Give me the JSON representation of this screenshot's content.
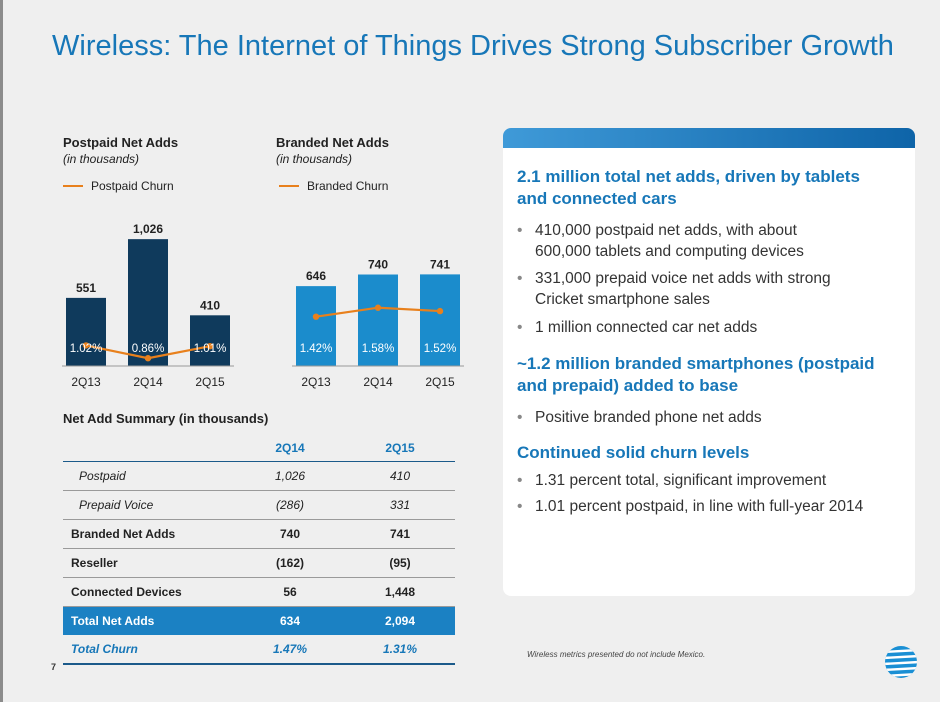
{
  "slide": {
    "title": "Wireless: The Internet of Things Drives Strong Subscriber Growth",
    "page_number": "7",
    "footnote": "Wireless metrics presented do not  include Mexico.",
    "logo_icon": "att-globe-icon"
  },
  "colors": {
    "title": "#1777b8",
    "postpaid_bar": "#0f3a5c",
    "branded_bar": "#1b8ccc",
    "churn_line": "#e8801c",
    "panel_heading": "#1777b8"
  },
  "chart_data": [
    {
      "type": "bar",
      "title": "Postpaid Net Adds",
      "subtitle": "(in thousands)",
      "categories": [
        "2Q13",
        "2Q14",
        "2Q15"
      ],
      "values": [
        551,
        1026,
        410
      ],
      "value_labels": [
        "551",
        "1,026",
        "410"
      ],
      "line_series": {
        "name": "Postpaid Churn",
        "values": [
          1.02,
          0.86,
          1.01
        ],
        "labels": [
          "1.02%",
          "0.86%",
          "1.01%"
        ]
      },
      "ylim": [
        0,
        1100
      ]
    },
    {
      "type": "bar",
      "title": "Branded Net Adds",
      "subtitle": "(in thousands)",
      "categories": [
        "2Q13",
        "2Q14",
        "2Q15"
      ],
      "values": [
        646,
        740,
        741
      ],
      "value_labels": [
        "646",
        "740",
        "741"
      ],
      "line_series": {
        "name": "Branded Churn",
        "values": [
          1.42,
          1.58,
          1.52
        ],
        "labels": [
          "1.42%",
          "1.58%",
          "1.52%"
        ]
      },
      "ylim": [
        0,
        1100
      ]
    }
  ],
  "summary": {
    "label": "Net Add Summary (in thousands)",
    "columns": [
      "2Q14",
      "2Q15"
    ],
    "rows": [
      {
        "label": "Postpaid",
        "values": [
          "1,026",
          "410"
        ]
      },
      {
        "label": "Prepaid Voice",
        "values": [
          "(286)",
          "331"
        ]
      },
      {
        "label": "Branded Net Adds",
        "values": [
          "740",
          "741"
        ]
      },
      {
        "label": "Reseller",
        "values": [
          "(162)",
          "(95)"
        ]
      },
      {
        "label": "Connected Devices",
        "values": [
          "56",
          "1,448"
        ]
      },
      {
        "label": "Total Net Adds",
        "values": [
          "634",
          "2,094"
        ]
      },
      {
        "label": "Total Churn",
        "values": [
          "1.47%",
          "1.31%"
        ]
      }
    ]
  },
  "panel": {
    "sections": [
      {
        "heading": [
          "2.1 million total net adds, driven by tablets",
          "and connected cars"
        ],
        "bullets": [
          [
            "410,000 postpaid net adds, with about",
            "600,000 tablets and computing devices"
          ],
          [
            "331,000 prepaid voice net adds with strong",
            "Cricket smartphone sales"
          ],
          [
            "1 million connected car net adds"
          ]
        ]
      },
      {
        "heading": [
          "~1.2 million branded smartphones (postpaid",
          "and prepaid) added to base"
        ],
        "bullets": [
          [
            "Positive branded phone net adds"
          ]
        ]
      },
      {
        "heading": [
          "Continued solid churn levels"
        ],
        "bullets": [
          [
            "1.31 percent total, significant improvement"
          ],
          [
            "1.01 percent postpaid, in line with full-year 2014"
          ]
        ]
      }
    ]
  }
}
